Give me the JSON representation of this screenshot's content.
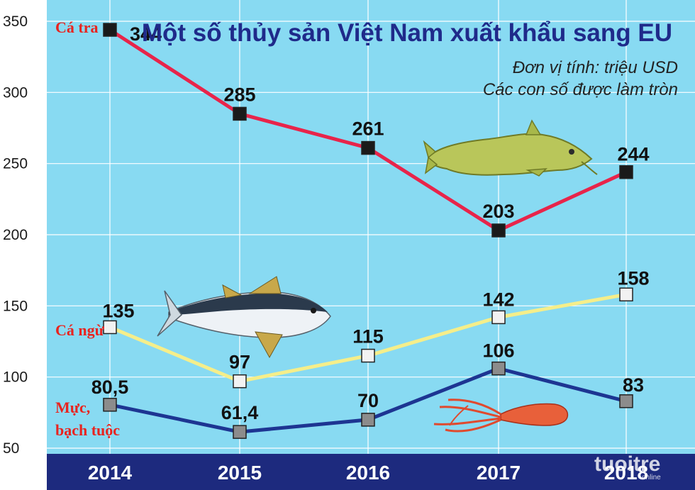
{
  "chart_data": {
    "type": "line",
    "title": "Một số thủy sản Việt Nam xuất khẩu sang EU",
    "subtitle": [
      "Đơn vị tính: triệu USD",
      "Các con số được làm tròn"
    ],
    "categories": [
      "2014",
      "2015",
      "2016",
      "2017",
      "2018"
    ],
    "ylim": [
      50,
      350
    ],
    "yticks": [
      50,
      100,
      150,
      200,
      250,
      300,
      350
    ],
    "grid": true,
    "series": [
      {
        "name": "Cá tra",
        "values": [
          344,
          285,
          261,
          203,
          244
        ],
        "labels": [
          "344",
          "285",
          "261",
          "203",
          "244"
        ],
        "color": "#e8244a",
        "marker_color": "#1a1a1a"
      },
      {
        "name": "Cá ngừ",
        "values": [
          135,
          97,
          115,
          142,
          158
        ],
        "labels": [
          "135",
          "97",
          "115",
          "142",
          "158"
        ],
        "color": "#f5ee8a",
        "marker_color": "#f2f2f2"
      },
      {
        "name": "Mực, bạch tuộc",
        "name_lines": [
          "Mực,",
          "bạch tuộc"
        ],
        "values": [
          80.5,
          61.4,
          70,
          106,
          83
        ],
        "labels": [
          "80,5",
          "61,4",
          "70",
          "106",
          "83"
        ],
        "color": "#1d3592",
        "marker_color": "#8c8c8c"
      }
    ]
  },
  "colors": {
    "plot_background": "#88daf2",
    "gridline": "#ffffff",
    "axis_band": "#1d2a7e",
    "title": "#1f2a8a",
    "series_label": "#e8241f"
  },
  "watermark": {
    "brand": "tuoitre",
    "suffix": "online"
  },
  "illustrations": [
    "catfish-illustration",
    "tuna-illustration",
    "squid-illustration"
  ]
}
